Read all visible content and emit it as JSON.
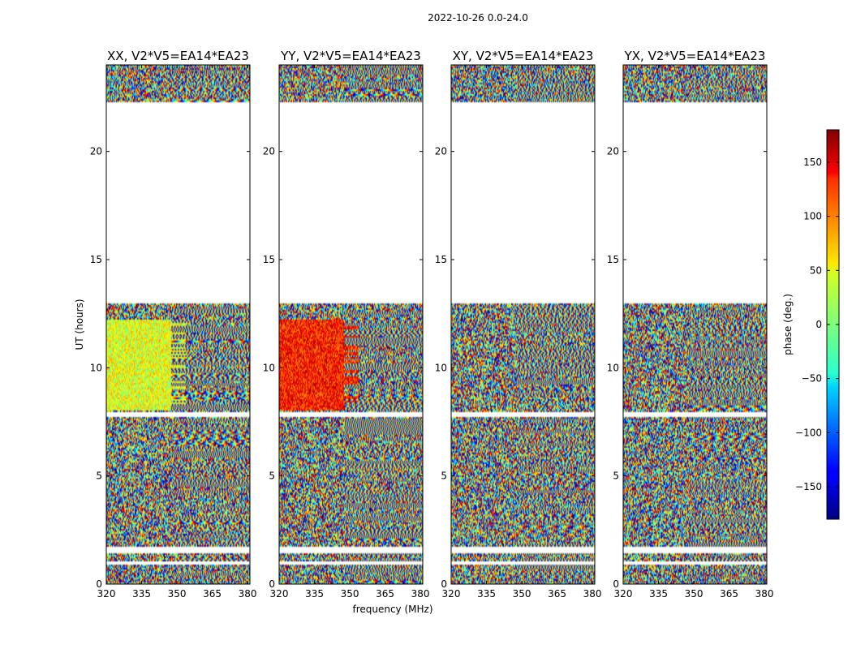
{
  "chart_data": {
    "type": "heatmap",
    "suptitle": "2022-10-26 0.0-24.0",
    "xlabel": "frequency (MHz)",
    "ylabel": "UT (hours)",
    "colorbar_label": "phase (deg.)",
    "colormap": "jet",
    "color_range": [
      -180,
      180
    ],
    "xlim": [
      320,
      381
    ],
    "ylim": [
      0,
      24
    ],
    "x_ticks": [
      320,
      335,
      350,
      365,
      380
    ],
    "y_ticks": [
      0,
      5,
      10,
      15,
      20
    ],
    "colorbar_ticks": [
      150,
      100,
      50,
      0,
      -50,
      -100,
      -150
    ],
    "colorbar_tick_labels": [
      "150",
      "100",
      "50",
      "0",
      "−50",
      "−100",
      "−150"
    ],
    "data_gaps_hours": [
      [
        0.9,
        1.05
      ],
      [
        1.45,
        1.7
      ],
      [
        7.75,
        7.95
      ],
      [
        13.0,
        22.3
      ]
    ],
    "panels": [
      {
        "title": "XX, V2*V5=EA14*EA23"
      },
      {
        "title": "YY, V2*V5=EA14*EA23"
      },
      {
        "title": "XY, V2*V5=EA14*EA23"
      },
      {
        "title": "YX, V2*V5=EA14*EA23"
      }
    ]
  }
}
